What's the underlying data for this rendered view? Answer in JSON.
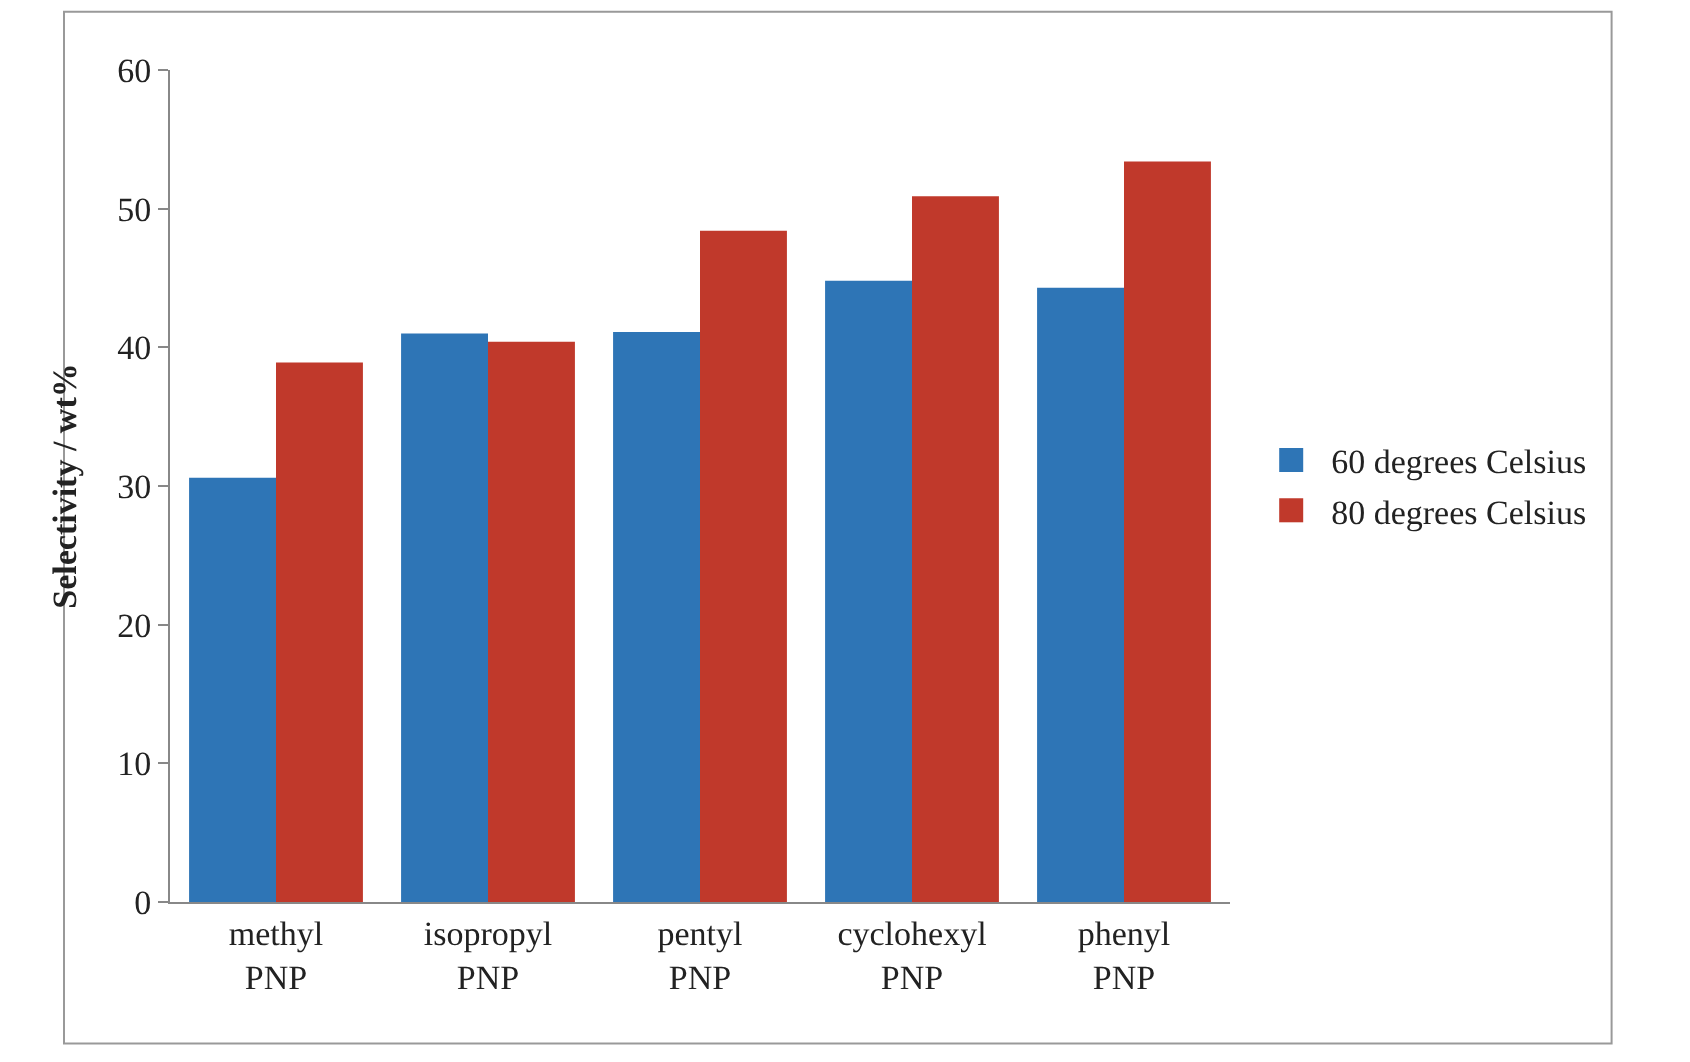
{
  "chart_data": {
    "type": "bar",
    "ylabel": "Selectivity / wt%",
    "categories": [
      "methyl PNP",
      "isopropyl PNP",
      "pentyl PNP",
      "cyclohexyl PNP",
      "phenyl PNP"
    ],
    "series": [
      {
        "name": "60 degrees Celsius",
        "color": "#2e75b6",
        "values": [
          30.6,
          41.0,
          41.1,
          44.8,
          44.3
        ]
      },
      {
        "name": "80 degrees Celsius",
        "color": "#c0392b",
        "values": [
          38.9,
          40.4,
          48.4,
          50.9,
          53.4
        ]
      }
    ],
    "ylim": [
      0,
      60
    ],
    "yticks": [
      0,
      10,
      20,
      30,
      40,
      50,
      60
    ],
    "legend": "right"
  }
}
